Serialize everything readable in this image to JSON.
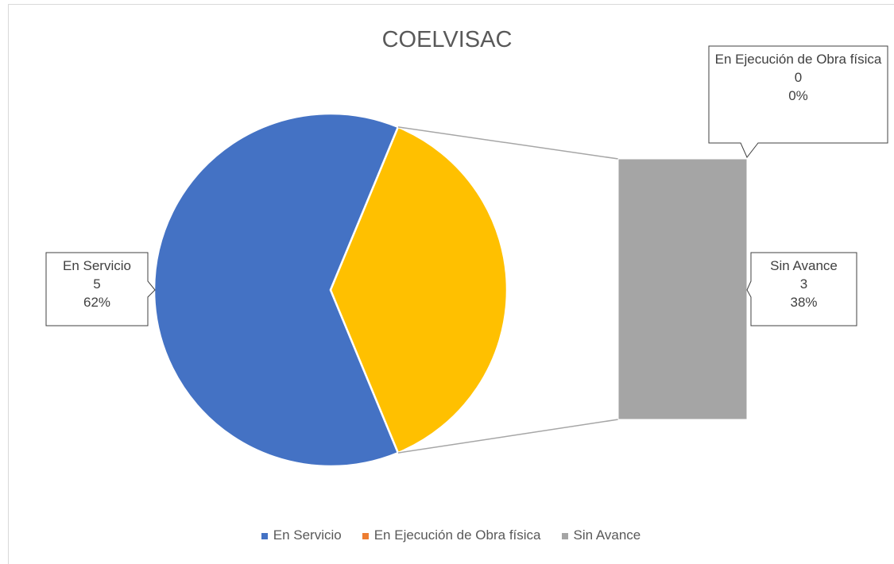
{
  "chart_data": {
    "type": "bar-of-pie",
    "title": "COELVISAC",
    "categories": [
      "En Servicio",
      "En Ejecución de Obra física",
      "Sin Avance"
    ],
    "values": [
      5,
      0,
      3
    ],
    "percent_labels": [
      "62%",
      "0%",
      "38%"
    ],
    "colors": [
      "#4472c4",
      "#ed7d31",
      "#a5a5a5"
    ],
    "secondary_indices": [
      1,
      2
    ],
    "other_color": "#ffc000",
    "legend": "bottom"
  }
}
